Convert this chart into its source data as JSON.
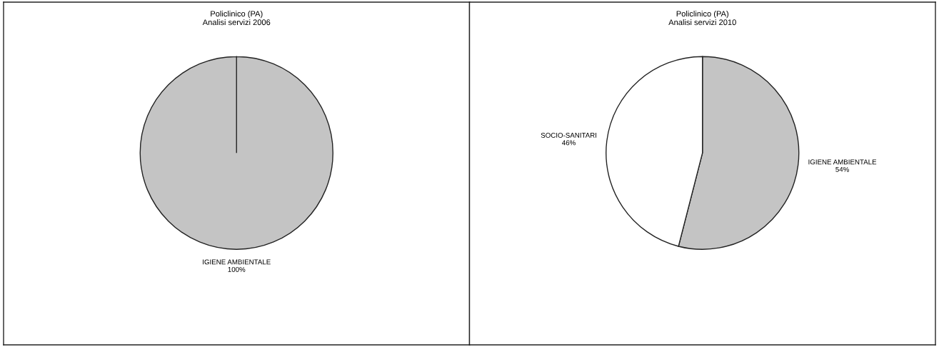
{
  "chart_data": [
    {
      "type": "pie",
      "title": "Policlinico (PA)\nAnalisi servizi 2006",
      "categories": [
        "IGIENE AMBIENTALE"
      ],
      "values": [
        100
      ],
      "value_labels": [
        "100%"
      ],
      "colors": [
        "#c4c4c4"
      ]
    },
    {
      "type": "pie",
      "title": "Policlinico (PA)\nAnalisi servizi 2010",
      "categories": [
        "IGIENE AMBIENTALE",
        "SOCIO-SANITARI"
      ],
      "values": [
        54,
        46
      ],
      "value_labels": [
        "54%",
        "46%"
      ],
      "colors": [
        "#c4c4c4",
        "#ffffff"
      ]
    }
  ]
}
